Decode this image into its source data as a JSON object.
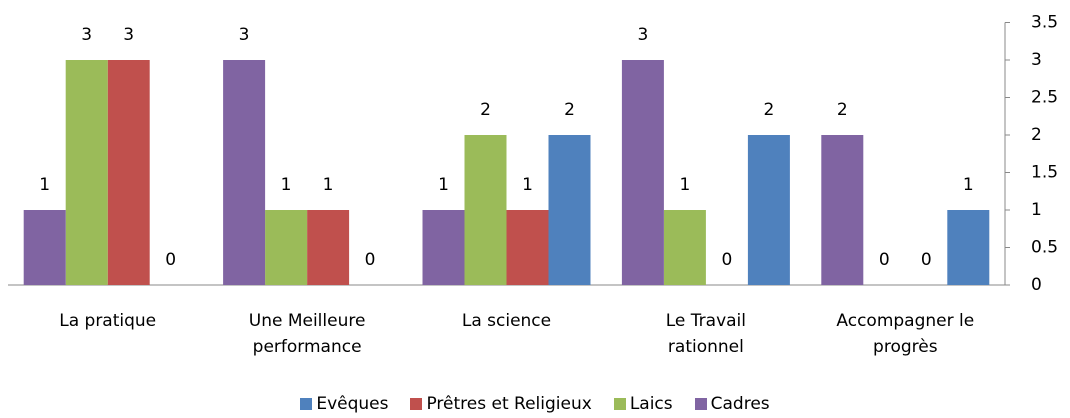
{
  "chart_data": {
    "type": "bar",
    "categories": [
      "La pratique",
      "Une Meilleure performance",
      "La science",
      "Le Travail rationnel",
      "Accompagner le progrès"
    ],
    "series": [
      {
        "name": "Evêques",
        "color": "#4f81bd",
        "values": [
          0,
          0,
          2,
          2,
          1
        ]
      },
      {
        "name": "Prêtres et Religieux",
        "color": "#c0504d",
        "values": [
          3,
          1,
          1,
          0,
          0
        ]
      },
      {
        "name": "Laics",
        "color": "#9bbb59",
        "values": [
          3,
          1,
          2,
          1,
          0
        ]
      },
      {
        "name": "Cadres",
        "color": "#8064a2",
        "values": [
          1,
          3,
          1,
          3,
          2
        ]
      }
    ],
    "ylim": [
      0,
      3.5
    ],
    "yticks": [
      0,
      0.5,
      1,
      1.5,
      2,
      2.5,
      3,
      3.5
    ],
    "grid": false,
    "legend": "bottom"
  }
}
